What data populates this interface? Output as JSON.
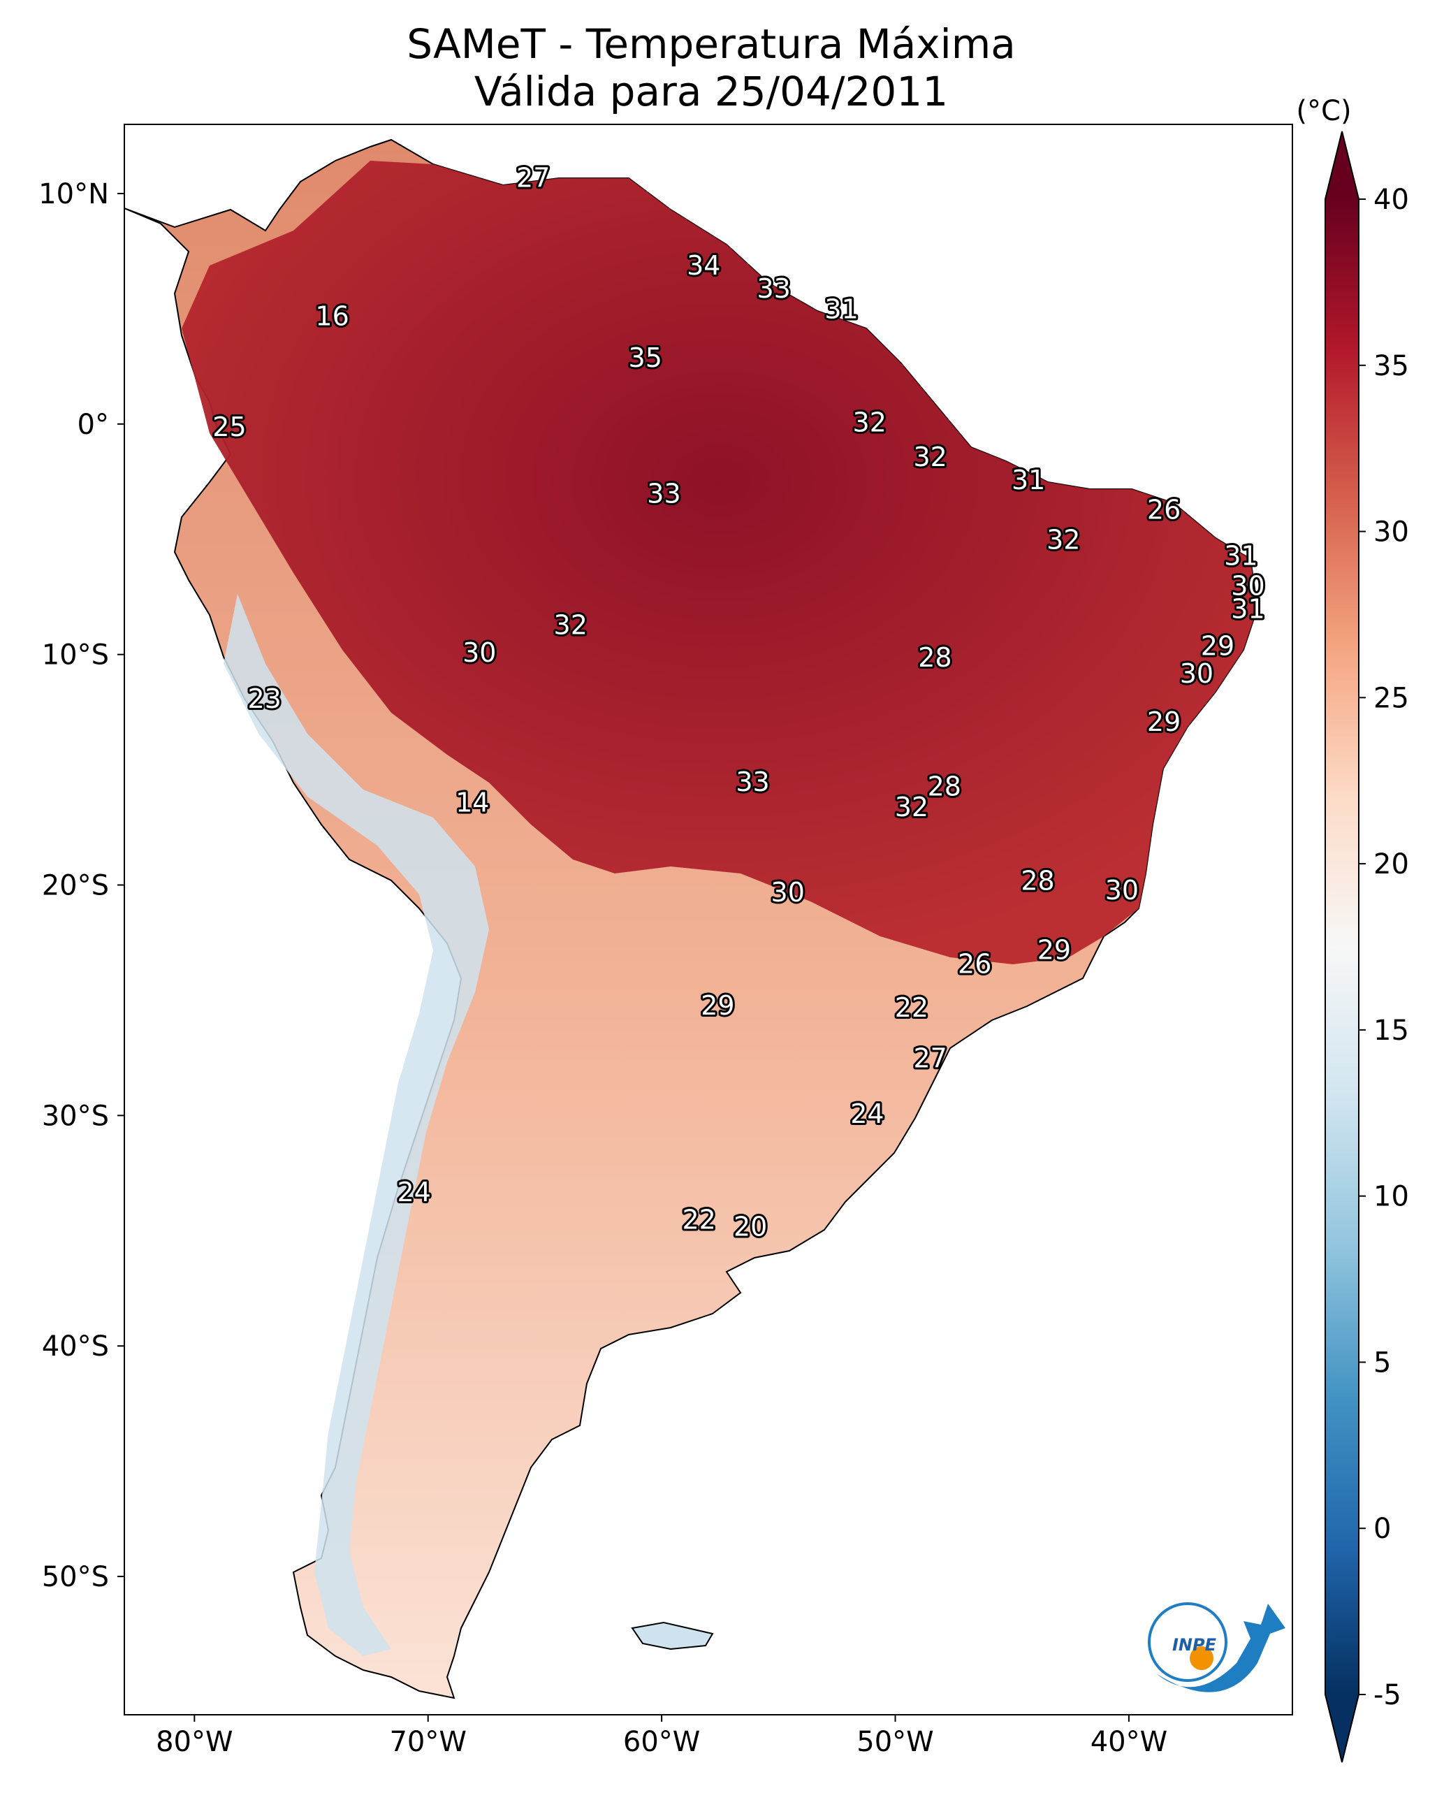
{
  "title": {
    "line1": "SAMeT - Temperatura Máxima",
    "line2": "Válida para 25/04/2011"
  },
  "map": {
    "lon_range": [
      -83,
      -33
    ],
    "lat_range": [
      -56,
      13
    ],
    "lon_ticks": [
      {
        "value": -80,
        "label": "80°W"
      },
      {
        "value": -70,
        "label": "70°W"
      },
      {
        "value": -60,
        "label": "60°W"
      },
      {
        "value": -50,
        "label": "50°W"
      },
      {
        "value": -40,
        "label": "40°W"
      }
    ],
    "lat_ticks": [
      {
        "value": 10,
        "label": "10°N"
      },
      {
        "value": 0,
        "label": "0°"
      },
      {
        "value": -10,
        "label": "10°S"
      },
      {
        "value": -20,
        "label": "20°S"
      },
      {
        "value": -30,
        "label": "30°S"
      },
      {
        "value": -40,
        "label": "40°S"
      },
      {
        "value": -50,
        "label": "50°S"
      }
    ],
    "point_labels": [
      {
        "lon": -65.5,
        "lat": 10.6,
        "value": "27"
      },
      {
        "lon": -74.1,
        "lat": 4.6,
        "value": "16"
      },
      {
        "lon": -60.7,
        "lat": 2.8,
        "value": "35"
      },
      {
        "lon": -58.2,
        "lat": 6.8,
        "value": "34"
      },
      {
        "lon": -55.2,
        "lat": 5.8,
        "value": "33"
      },
      {
        "lon": -52.3,
        "lat": 4.9,
        "value": "31"
      },
      {
        "lon": -78.5,
        "lat": -0.2,
        "value": "25"
      },
      {
        "lon": -51.1,
        "lat": 0.0,
        "value": "32"
      },
      {
        "lon": -48.5,
        "lat": -1.5,
        "value": "32"
      },
      {
        "lon": -59.9,
        "lat": -3.1,
        "value": "33"
      },
      {
        "lon": -44.3,
        "lat": -2.5,
        "value": "31"
      },
      {
        "lon": -38.5,
        "lat": -3.8,
        "value": "26"
      },
      {
        "lon": -42.8,
        "lat": -5.1,
        "value": "32"
      },
      {
        "lon": -35.2,
        "lat": -5.8,
        "value": "31"
      },
      {
        "lon": -34.9,
        "lat": -7.1,
        "value": "30"
      },
      {
        "lon": -34.9,
        "lat": -8.1,
        "value": "31"
      },
      {
        "lon": -36.2,
        "lat": -9.7,
        "value": "29"
      },
      {
        "lon": -63.9,
        "lat": -8.8,
        "value": "32"
      },
      {
        "lon": -67.8,
        "lat": -10.0,
        "value": "30"
      },
      {
        "lon": -48.3,
        "lat": -10.2,
        "value": "28"
      },
      {
        "lon": -37.1,
        "lat": -10.9,
        "value": "30"
      },
      {
        "lon": -77.0,
        "lat": -12.0,
        "value": "23"
      },
      {
        "lon": -38.5,
        "lat": -13.0,
        "value": "29"
      },
      {
        "lon": -56.1,
        "lat": -15.6,
        "value": "33"
      },
      {
        "lon": -47.9,
        "lat": -15.8,
        "value": "28"
      },
      {
        "lon": -49.3,
        "lat": -16.7,
        "value": "32"
      },
      {
        "lon": -68.1,
        "lat": -16.5,
        "value": "14"
      },
      {
        "lon": -54.6,
        "lat": -20.4,
        "value": "30"
      },
      {
        "lon": -43.9,
        "lat": -19.9,
        "value": "28"
      },
      {
        "lon": -40.3,
        "lat": -20.3,
        "value": "30"
      },
      {
        "lon": -43.2,
        "lat": -22.9,
        "value": "29"
      },
      {
        "lon": -46.6,
        "lat": -23.5,
        "value": "26"
      },
      {
        "lon": -57.6,
        "lat": -25.3,
        "value": "29"
      },
      {
        "lon": -49.3,
        "lat": -25.4,
        "value": "22"
      },
      {
        "lon": -48.5,
        "lat": -27.6,
        "value": "27"
      },
      {
        "lon": -51.2,
        "lat": -30.0,
        "value": "24"
      },
      {
        "lon": -70.6,
        "lat": -33.4,
        "value": "24"
      },
      {
        "lon": -58.4,
        "lat": -34.6,
        "value": "22"
      },
      {
        "lon": -56.2,
        "lat": -34.9,
        "value": "20"
      }
    ]
  },
  "colorbar": {
    "unit": "(°C)",
    "min": -5,
    "max": 40,
    "ticks": [
      "-5",
      "0",
      "5",
      "10",
      "15",
      "20",
      "25",
      "30",
      "35",
      "40"
    ],
    "colors": [
      "#053061",
      "#2166ac",
      "#4393c3",
      "#92c5de",
      "#d1e5f0",
      "#f7f7f7",
      "#fddbc7",
      "#f4a582",
      "#d6604d",
      "#b2182b",
      "#67001f"
    ]
  },
  "logo": {
    "text": "INPE"
  }
}
